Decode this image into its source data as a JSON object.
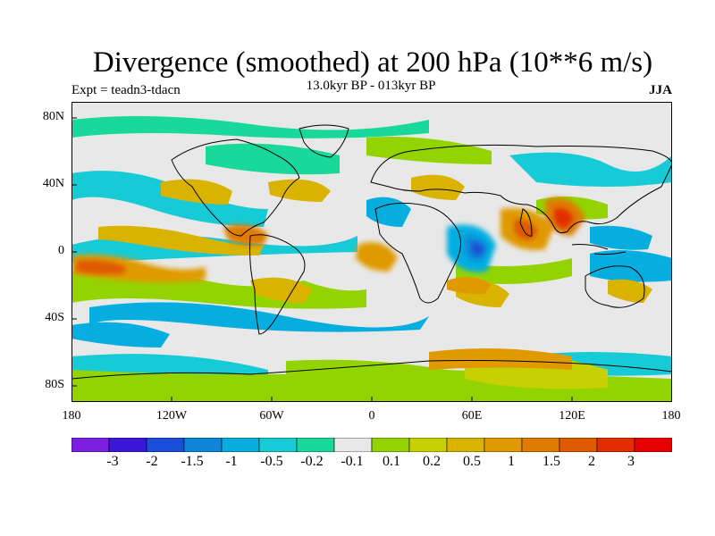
{
  "header": {
    "title": "Divergence (smoothed) at 200 hPa (10**6 m/s)",
    "subtitle": "13.0kyr BP - 013kyr BP",
    "experiment": "Expt = teadn3-tdacn",
    "season": "JJA"
  },
  "axes": {
    "lat_labels": [
      "80N",
      "40N",
      "0",
      "40S",
      "80S"
    ],
    "lon_labels": [
      "180",
      "120W",
      "60W",
      "0",
      "60E",
      "120E",
      "180"
    ]
  },
  "colorbar": {
    "colors": [
      "#7b1fe0",
      "#3a17d6",
      "#1b4ed8",
      "#0d86d9",
      "#06aee0",
      "#16cbd6",
      "#19d99a",
      "#e8e8e8",
      "#93d400",
      "#c7d000",
      "#d9b300",
      "#e09a00",
      "#df7b00",
      "#df5a00",
      "#e22d00",
      "#e60000"
    ],
    "labels": [
      "-3",
      "-2",
      "-1.5",
      "-1",
      "-0.5",
      "-0.2",
      "-0.1",
      "0.1",
      "0.2",
      "0.5",
      "1",
      "1.5",
      "2",
      "3"
    ]
  },
  "map_data": {
    "projection": "cylindrical equidistant",
    "lon_range": [
      -180,
      180
    ],
    "lat_range": [
      -90,
      90
    ],
    "field": "divergence difference 200 hPa, smoothed",
    "features": [
      {
        "region": "eastern tropical Pacific",
        "sign": "positive",
        "magnitude": 1.5
      },
      {
        "region": "Amazon / northern South America",
        "sign": "positive",
        "magnitude": 1.0
      },
      {
        "region": "western Indian Ocean",
        "sign": "negative",
        "magnitude": -2.0
      },
      {
        "region": "Bay of Bengal / South China Sea",
        "sign": "positive",
        "magnitude": 2.0
      },
      {
        "region": "Southern Ocean band",
        "sign": "negative",
        "magnitude": -0.5
      },
      {
        "region": "Antarctic coast",
        "sign": "positive",
        "magnitude": 0.5
      }
    ]
  }
}
